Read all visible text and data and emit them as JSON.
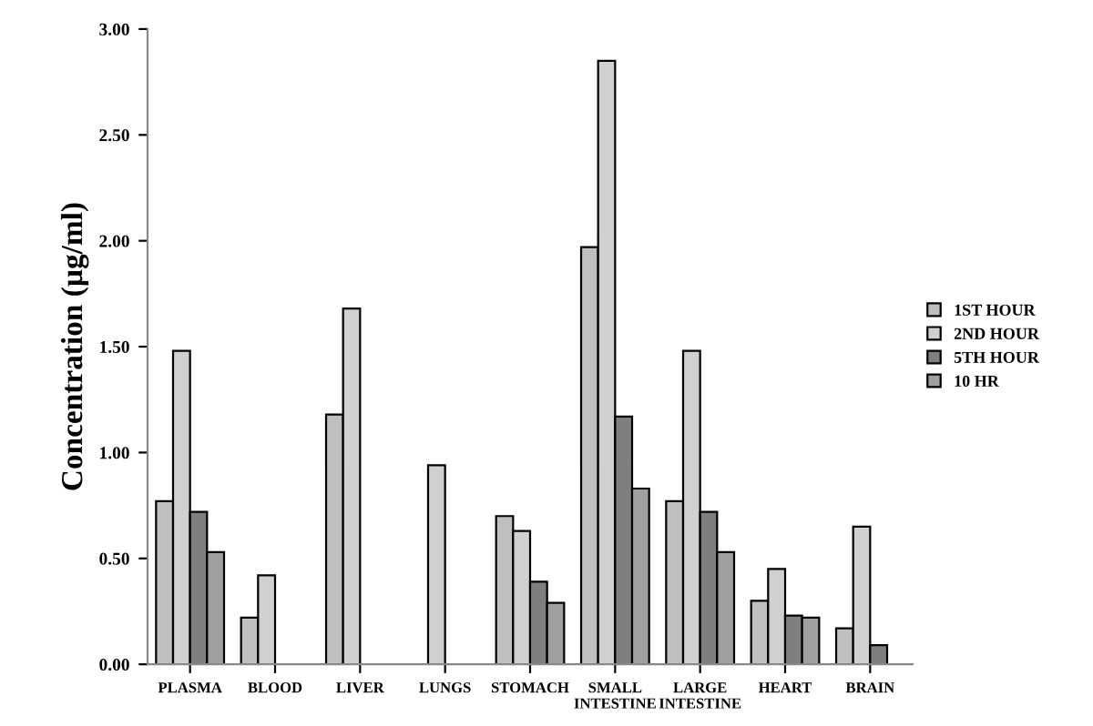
{
  "chart_data": {
    "type": "bar",
    "ylabel": "Concentration (µg/ml)",
    "categories": [
      "PLASMA",
      "BLOOD",
      "LIVER",
      "LUNGS",
      "STOMACH",
      "SMALL\nINTESTINE",
      "LARGE\nINTESTINE",
      "HEART",
      "BRAIN"
    ],
    "series": [
      {
        "name": "1ST HOUR",
        "color": "#bfbfbf",
        "values": [
          0.77,
          0.22,
          1.18,
          null,
          0.7,
          1.97,
          0.77,
          0.3,
          0.17
        ]
      },
      {
        "name": "2ND HOUR",
        "color": "#d0d0d0",
        "values": [
          1.48,
          0.42,
          1.68,
          0.94,
          0.63,
          2.85,
          1.48,
          0.45,
          0.65
        ]
      },
      {
        "name": "5TH HOUR",
        "color": "#7f7f7f",
        "values": [
          0.72,
          null,
          null,
          null,
          0.39,
          1.17,
          0.72,
          0.23,
          0.09
        ]
      },
      {
        "name": "10 HR",
        "color": "#a0a0a0",
        "values": [
          0.53,
          null,
          null,
          null,
          0.29,
          0.83,
          0.53,
          0.22,
          null
        ]
      }
    ],
    "ylim": [
      0,
      3
    ],
    "yticks": [
      {
        "value": 0,
        "label": "0.00"
      },
      {
        "value": 0.5,
        "label": "0.50"
      },
      {
        "value": 1,
        "label": "1.00"
      },
      {
        "value": 1.5,
        "label": "1.50"
      },
      {
        "value": 2,
        "label": "2.00"
      },
      {
        "value": 2.5,
        "label": "2.50"
      },
      {
        "value": 3,
        "label": "3.00"
      }
    ],
    "grid": false,
    "legend": "right"
  }
}
